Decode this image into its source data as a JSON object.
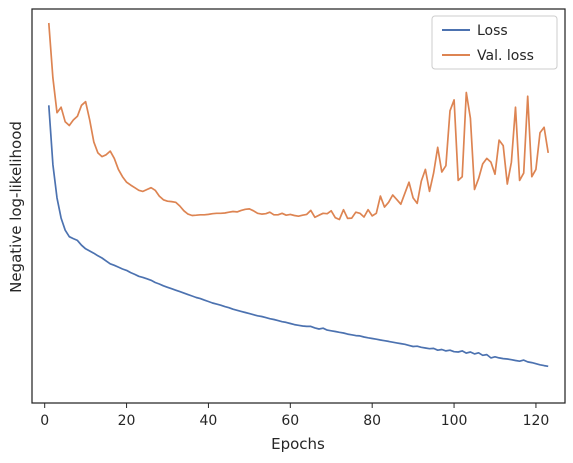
{
  "chart_data": {
    "type": "line",
    "title": "",
    "xlabel": "Epochs",
    "ylabel": "Negative log-likelihood",
    "xlim": [
      -3.1,
      127.1
    ],
    "ylim": [
      0,
      1
    ],
    "xticks": [
      0,
      20,
      40,
      60,
      80,
      100,
      120
    ],
    "yticks": [],
    "grid": false,
    "legend_position": "top-right",
    "series": [
      {
        "name": "Loss",
        "color": "#4c72b0",
        "x": [
          1,
          2,
          3,
          4,
          5,
          6,
          7,
          8,
          9,
          10,
          11,
          12,
          13,
          14,
          15,
          16,
          17,
          18,
          19,
          20,
          21,
          22,
          23,
          24,
          25,
          26,
          27,
          28,
          29,
          30,
          31,
          32,
          33,
          34,
          35,
          36,
          37,
          38,
          39,
          40,
          41,
          42,
          43,
          44,
          45,
          46,
          47,
          48,
          49,
          50,
          51,
          52,
          53,
          54,
          55,
          56,
          57,
          58,
          59,
          60,
          61,
          62,
          63,
          64,
          65,
          66,
          67,
          68,
          69,
          70,
          71,
          72,
          73,
          74,
          75,
          76,
          77,
          78,
          79,
          80,
          81,
          82,
          83,
          84,
          85,
          86,
          87,
          88,
          89,
          90,
          91,
          92,
          93,
          94,
          95,
          96,
          97,
          98,
          99,
          100,
          101,
          102,
          103,
          104,
          105,
          106,
          107,
          108,
          109,
          110,
          111,
          112,
          113,
          114,
          115,
          116,
          117,
          118,
          119,
          120,
          121,
          122,
          123
        ],
        "y": [
          0.775,
          0.613,
          0.522,
          0.467,
          0.434,
          0.416,
          0.411,
          0.406,
          0.393,
          0.383,
          0.377,
          0.371,
          0.364,
          0.358,
          0.35,
          0.342,
          0.338,
          0.333,
          0.328,
          0.324,
          0.318,
          0.313,
          0.308,
          0.305,
          0.301,
          0.297,
          0.291,
          0.287,
          0.282,
          0.278,
          0.274,
          0.27,
          0.266,
          0.262,
          0.258,
          0.254,
          0.25,
          0.247,
          0.243,
          0.239,
          0.235,
          0.232,
          0.229,
          0.225,
          0.222,
          0.218,
          0.215,
          0.212,
          0.209,
          0.206,
          0.203,
          0.2,
          0.198,
          0.195,
          0.192,
          0.19,
          0.187,
          0.184,
          0.182,
          0.179,
          0.176,
          0.174,
          0.172,
          0.171,
          0.171,
          0.167,
          0.164,
          0.166,
          0.161,
          0.159,
          0.157,
          0.155,
          0.153,
          0.15,
          0.148,
          0.146,
          0.145,
          0.142,
          0.14,
          0.138,
          0.136,
          0.134,
          0.132,
          0.13,
          0.128,
          0.126,
          0.124,
          0.122,
          0.119,
          0.116,
          0.117,
          0.114,
          0.112,
          0.11,
          0.111,
          0.106,
          0.108,
          0.104,
          0.106,
          0.102,
          0.101,
          0.104,
          0.098,
          0.101,
          0.096,
          0.099,
          0.092,
          0.094,
          0.085,
          0.088,
          0.085,
          0.083,
          0.082,
          0.08,
          0.078,
          0.076,
          0.079,
          0.074,
          0.072,
          0.069,
          0.066,
          0.064,
          0.062
        ]
      },
      {
        "name": "Val. loss",
        "color": "#dd8452",
        "x": [
          1,
          2,
          3,
          4,
          5,
          6,
          7,
          8,
          9,
          10,
          11,
          12,
          13,
          14,
          15,
          16,
          17,
          18,
          19,
          20,
          21,
          22,
          23,
          24,
          25,
          26,
          27,
          28,
          29,
          30,
          31,
          32,
          33,
          34,
          35,
          36,
          37,
          38,
          39,
          40,
          41,
          42,
          43,
          44,
          45,
          46,
          47,
          48,
          49,
          50,
          51,
          52,
          53,
          54,
          55,
          56,
          57,
          58,
          59,
          60,
          61,
          62,
          63,
          64,
          65,
          66,
          67,
          68,
          69,
          70,
          71,
          72,
          73,
          74,
          75,
          76,
          77,
          78,
          79,
          80,
          81,
          82,
          83,
          84,
          85,
          86,
          87,
          88,
          89,
          90,
          91,
          92,
          93,
          94,
          95,
          96,
          97,
          98,
          99,
          100,
          101,
          102,
          103,
          104,
          105,
          106,
          107,
          108,
          109,
          110,
          111,
          112,
          113,
          114,
          115,
          116,
          117,
          118,
          119,
          120,
          121,
          122,
          123
        ],
        "y": [
          1.0,
          0.85,
          0.755,
          0.77,
          0.73,
          0.72,
          0.735,
          0.745,
          0.775,
          0.785,
          0.735,
          0.675,
          0.645,
          0.635,
          0.64,
          0.65,
          0.63,
          0.6,
          0.58,
          0.565,
          0.557,
          0.55,
          0.543,
          0.54,
          0.545,
          0.55,
          0.543,
          0.527,
          0.517,
          0.513,
          0.512,
          0.51,
          0.5,
          0.487,
          0.478,
          0.474,
          0.475,
          0.476,
          0.476,
          0.477,
          0.479,
          0.48,
          0.48,
          0.481,
          0.483,
          0.485,
          0.484,
          0.488,
          0.491,
          0.492,
          0.487,
          0.48,
          0.478,
          0.479,
          0.483,
          0.476,
          0.476,
          0.48,
          0.475,
          0.477,
          0.474,
          0.472,
          0.475,
          0.477,
          0.488,
          0.469,
          0.475,
          0.48,
          0.479,
          0.487,
          0.468,
          0.463,
          0.49,
          0.466,
          0.467,
          0.483,
          0.48,
          0.47,
          0.49,
          0.473,
          0.48,
          0.527,
          0.497,
          0.51,
          0.53,
          0.518,
          0.505,
          0.535,
          0.565,
          0.522,
          0.507,
          0.568,
          0.6,
          0.54,
          0.59,
          0.66,
          0.593,
          0.61,
          0.76,
          0.79,
          0.57,
          0.58,
          0.81,
          0.74,
          0.545,
          0.575,
          0.615,
          0.63,
          0.62,
          0.587,
          0.68,
          0.665,
          0.56,
          0.62,
          0.77,
          0.57,
          0.59,
          0.8,
          0.58,
          0.6,
          0.7,
          0.715,
          0.645
        ]
      }
    ]
  }
}
